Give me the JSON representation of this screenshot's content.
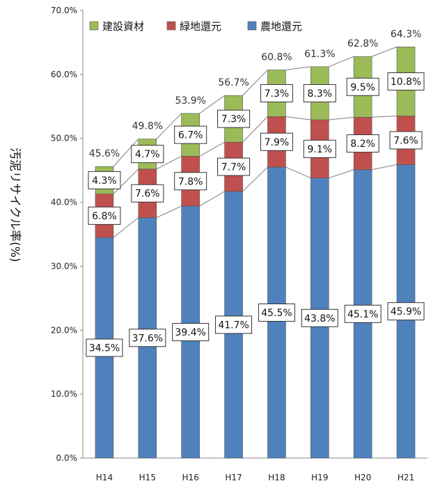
{
  "chart_data": {
    "type": "bar",
    "stacked": true,
    "categories": [
      "H14",
      "H15",
      "H16",
      "H17",
      "H18",
      "H19",
      "H20",
      "H21"
    ],
    "series": [
      {
        "name": "農地還元",
        "values": [
          34.5,
          37.6,
          39.4,
          41.7,
          45.5,
          43.8,
          45.1,
          45.9
        ],
        "labels": [
          "34.5%",
          "37.6%",
          "39.4%",
          "41.7%",
          "45.5%",
          "43.8%",
          "45.1%",
          "45.9%"
        ],
        "color": "#4f81bd"
      },
      {
        "name": "緑地還元",
        "values": [
          6.8,
          7.6,
          7.8,
          7.7,
          7.9,
          9.1,
          8.2,
          7.6
        ],
        "labels": [
          "6.8%",
          "7.6%",
          "7.8%",
          "7.7%",
          "7.9%",
          "9.1%",
          "8.2%",
          "7.6%"
        ],
        "color": "#c0504d"
      },
      {
        "name": "建設資材",
        "values": [
          4.3,
          4.7,
          6.7,
          7.3,
          7.3,
          8.3,
          9.5,
          10.8
        ],
        "labels": [
          "4.3%",
          "4.7%",
          "6.7%",
          "7.3%",
          "7.3%",
          "8.3%",
          "9.5%",
          "10.8%"
        ],
        "color": "#9bbb59"
      }
    ],
    "totals": [
      "45.6%",
      "49.8%",
      "53.9%",
      "56.7%",
      "60.8%",
      "61.3%",
      "62.8%",
      "64.3%"
    ],
    "ylabel": "汚泥リサイクル率(%)",
    "xlabel": "",
    "title": "",
    "ylim": [
      0,
      70
    ],
    "yticks": [
      "0.0%",
      "10.0%",
      "20.0%",
      "30.0%",
      "40.0%",
      "50.0%",
      "60.0%",
      "70.0%"
    ],
    "legend": {
      "position": "top",
      "order": [
        "建設資材",
        "緑地還元",
        "農地還元"
      ]
    },
    "grid": false,
    "connector_lines": true
  }
}
